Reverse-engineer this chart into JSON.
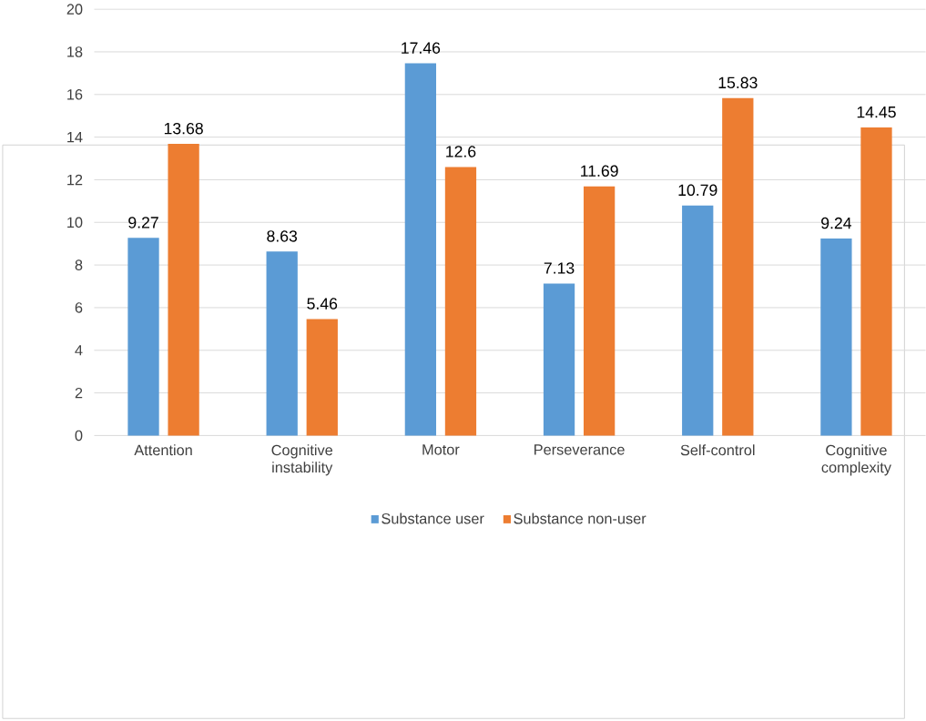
{
  "chart_data": {
    "type": "bar",
    "categories": [
      "Attention",
      "Cognitive instability",
      "Motor",
      "Perseverance",
      "Self-control",
      "Cognitive complexity"
    ],
    "series": [
      {
        "name": "Substance user",
        "color": "#5b9bd5",
        "values": [
          9.27,
          8.63,
          17.46,
          7.13,
          10.79,
          9.24
        ]
      },
      {
        "name": "Substance non-user",
        "color": "#ed7d31",
        "values": [
          13.68,
          5.46,
          12.6,
          11.69,
          15.83,
          14.45
        ]
      }
    ],
    "ylim": [
      0,
      20
    ],
    "yticks": [
      0,
      2,
      4,
      6,
      8,
      10,
      12,
      14,
      16,
      18,
      20
    ],
    "grid": "y",
    "legend": "bottom",
    "data_labels": true
  }
}
